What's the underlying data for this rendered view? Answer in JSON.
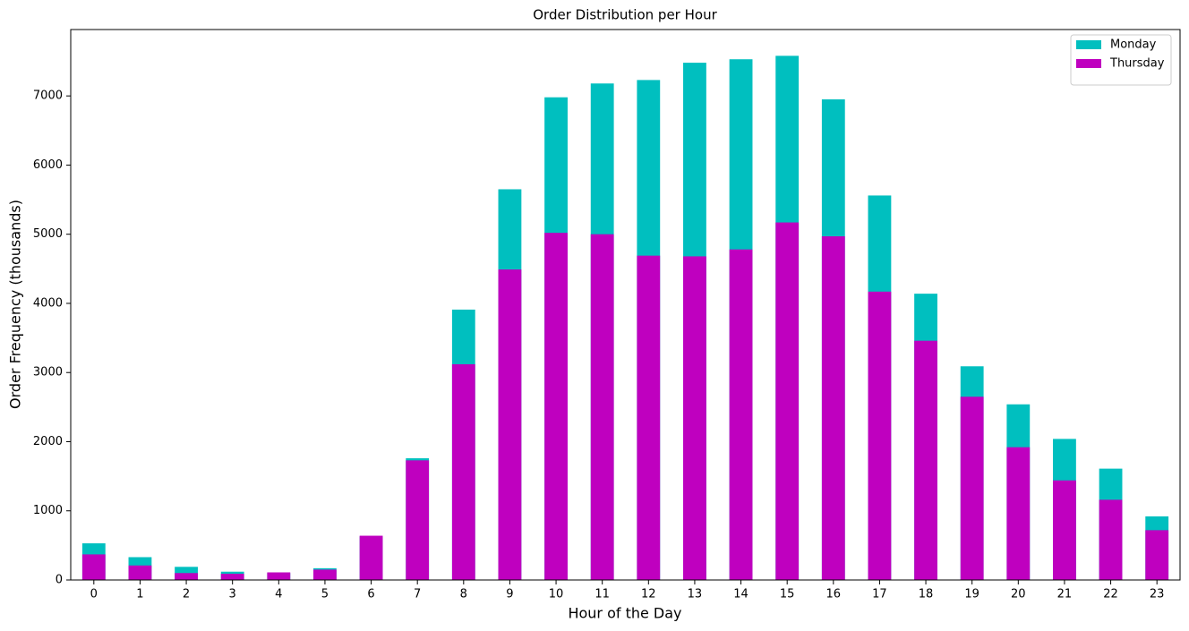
{
  "chart_data": {
    "type": "bar",
    "title": "Order Distribution per Hour",
    "x_label": "Hour of the Day",
    "y_label": "Order Frequency (thousands)",
    "categories": [
      "0",
      "1",
      "2",
      "3",
      "4",
      "5",
      "6",
      "7",
      "8",
      "9",
      "10",
      "11",
      "12",
      "13",
      "14",
      "15",
      "16",
      "17",
      "18",
      "19",
      "20",
      "21",
      "22",
      "23"
    ],
    "series": [
      {
        "name": "Monday",
        "color": "#00bfbf",
        "values": [
          530,
          330,
          190,
          120,
          100,
          170,
          630,
          1760,
          3910,
          5650,
          6980,
          7180,
          7230,
          7480,
          7530,
          7580,
          6950,
          5560,
          4140,
          3090,
          2540,
          2040,
          1610,
          920
        ]
      },
      {
        "name": "Thursday",
        "color": "#bf00bf",
        "values": [
          370,
          210,
          100,
          90,
          110,
          150,
          640,
          1730,
          3120,
          4490,
          5020,
          5000,
          4690,
          4680,
          4780,
          5170,
          4970,
          4170,
          3460,
          2650,
          1920,
          1440,
          1160,
          720
        ]
      }
    ],
    "ylim": [
      0,
      7960
    ],
    "yticks": [
      0,
      1000,
      2000,
      3000,
      4000,
      5000,
      6000,
      7000
    ],
    "grid": false,
    "legend": "upper right"
  }
}
